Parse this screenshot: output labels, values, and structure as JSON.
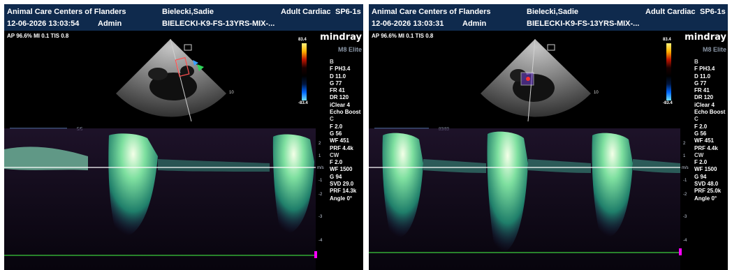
{
  "panels": [
    {
      "clinic": "Animal Care Centers of Flanders",
      "patient": "Bielecki,Sadie",
      "exam": "Adult Cardiac",
      "probe": "SP6-1s",
      "datetime": "12-06-2026 13:03:54",
      "user": "Admin",
      "patient_id": "BIELECKI-K9-FS-13YRS-MIX-...",
      "acoustic": "AP 96.6%  MI 0.1  TIS 0.8",
      "brand": "mindray",
      "model": "M8 Elite",
      "color_scale_top": "83.4",
      "color_scale_bottom": "-83.4",
      "depth_mark": "10",
      "frame_counter": "5/5",
      "params": [
        "B",
        "F PH3.4",
        "D 11.0",
        "G 77",
        "FR 41",
        "DR 120",
        "iClear 4",
        "Echo Boost",
        "C",
        "F 2.0",
        "G 56",
        "WF 451",
        "PRF 4.4k",
        "CW",
        "F 2.0",
        "WF 1500",
        "G 94",
        "SVD 29.0",
        "PRF 14.3k",
        "Angle 0°"
      ]
    },
    {
      "clinic": "Animal Care Centers of Flanders",
      "patient": "Bielecki,Sadie",
      "exam": "Adult Cardiac",
      "probe": "SP6-1s",
      "datetime": "12-06-2026 13:03:31",
      "user": "Admin",
      "patient_id": "BIELECKI-K9-FS-13YRS-MIX-...",
      "acoustic": "AP 96.6%  MI 0.1  TIS 0.8",
      "brand": "mindray",
      "model": "M8 Elite",
      "color_scale_top": "83.4",
      "color_scale_bottom": "-83.4",
      "depth_mark": "10",
      "frame_counter": "83/83",
      "params": [
        "B",
        "F PH3.4",
        "D 11.0",
        "G 77",
        "FR 41",
        "DR 120",
        "iClear 4",
        "Echo Boost",
        "C",
        "F 2.0",
        "G 56",
        "WF 451",
        "PRF 4.4k",
        "CW",
        "F 2.0",
        "WF 1500",
        "G 94",
        "SVD 48.0",
        "PRF 25.0k",
        "Angle 0°"
      ]
    }
  ],
  "spectrum_axis": {
    "ticks": [
      "2",
      "1",
      "m/s",
      "-1",
      "-2",
      "-3",
      "-4"
    ],
    "left_ticks": [
      "1",
      "-1",
      "-2",
      "-3",
      "-4"
    ]
  },
  "colors": {
    "header_bg": "#0f2a4d",
    "baseline": "#ffffff",
    "ecg": "#3ccc3c",
    "marker": "#ff00ff"
  }
}
